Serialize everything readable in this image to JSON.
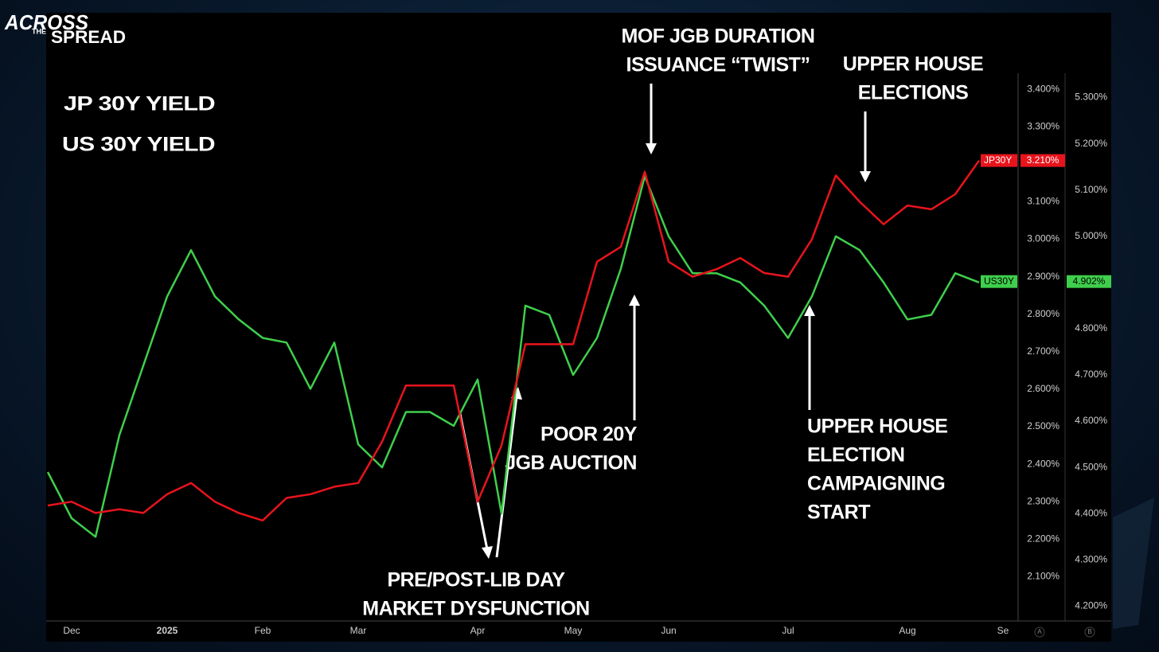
{
  "logo": {
    "top": "ACROSS",
    "middle": "THE",
    "bottom": "SPREAD"
  },
  "axis_buttons": [
    "A",
    "B"
  ],
  "chart_data": {
    "type": "line",
    "categories": [
      null,
      "Dec",
      null,
      null,
      null,
      "2025",
      null,
      null,
      null,
      "Feb",
      null,
      null,
      null,
      "Mar",
      null,
      null,
      null,
      null,
      "Apr",
      null,
      null,
      null,
      "May",
      null,
      null,
      null,
      "Jun",
      null,
      null,
      null,
      null,
      "Jul",
      null,
      null,
      null,
      null,
      "Aug",
      null,
      null,
      null,
      "Se"
    ],
    "series": [
      {
        "name": "JP 30Y YIELD",
        "tag": "JP30Y",
        "color": "#e8141c",
        "axis": "y",
        "last_value": 3.21,
        "last_label": "3.210%",
        "values": [
          2.29,
          2.3,
          2.27,
          2.28,
          2.27,
          2.32,
          2.35,
          2.3,
          2.27,
          2.25,
          2.31,
          2.32,
          2.34,
          2.35,
          2.46,
          2.61,
          2.61,
          2.61,
          2.3,
          2.45,
          2.72,
          2.72,
          2.72,
          2.94,
          2.98,
          3.18,
          2.94,
          2.9,
          2.92,
          2.95,
          2.91,
          2.9,
          3.0,
          3.17,
          3.1,
          3.04,
          3.09,
          3.08,
          3.12,
          3.21,
          null
        ]
      },
      {
        "name": "US 30Y YIELD",
        "tag": "US30Y",
        "color": "#3fcf4c",
        "axis": "y2",
        "last_value": 4.902,
        "last_label": "4.902%",
        "values": [
          4.49,
          4.39,
          4.35,
          4.57,
          4.72,
          4.87,
          4.97,
          4.87,
          4.82,
          4.78,
          4.77,
          4.67,
          4.77,
          4.55,
          4.5,
          4.62,
          4.62,
          4.59,
          4.69,
          4.4,
          4.85,
          4.83,
          4.7,
          4.78,
          4.93,
          5.13,
          5.0,
          4.92,
          4.92,
          4.9,
          4.85,
          4.78,
          4.87,
          5.0,
          4.97,
          4.9,
          4.82,
          4.83,
          4.92,
          4.9,
          null
        ]
      }
    ],
    "ylim": [
      2.05,
      3.43
    ],
    "yticks": [
      {
        "value": 2.1,
        "label": "2.100%"
      },
      {
        "value": 2.2,
        "label": "2.200%"
      },
      {
        "value": 2.3,
        "label": "2.300%"
      },
      {
        "value": 2.4,
        "label": "2.400%"
      },
      {
        "value": 2.5,
        "label": "2.500%"
      },
      {
        "value": 2.6,
        "label": "2.600%"
      },
      {
        "value": 2.7,
        "label": "2.700%"
      },
      {
        "value": 2.8,
        "label": "2.800%"
      },
      {
        "value": 2.9,
        "label": "2.900%"
      },
      {
        "value": 3.0,
        "label": "3.000%"
      },
      {
        "value": 3.1,
        "label": "3.100%"
      },
      {
        "value": 3.2,
        "label": "3.200%"
      },
      {
        "value": 3.3,
        "label": "3.300%"
      },
      {
        "value": 3.4,
        "label": "3.400%"
      }
    ],
    "y2lim": [
      4.18,
      5.325
    ],
    "y2ticks": [
      {
        "value": 4.2,
        "label": "4.200%"
      },
      {
        "value": 4.3,
        "label": "4.300%"
      },
      {
        "value": 4.4,
        "label": "4.400%"
      },
      {
        "value": 4.5,
        "label": "4.500%"
      },
      {
        "value": 4.6,
        "label": "4.600%"
      },
      {
        "value": 4.7,
        "label": "4.700%"
      },
      {
        "value": 4.8,
        "label": "4.800%"
      },
      {
        "value": 4.9,
        "label": "4.900%"
      },
      {
        "value": 5.0,
        "label": "5.000%"
      },
      {
        "value": 5.1,
        "label": "5.100%"
      },
      {
        "value": 5.2,
        "label": "5.200%"
      },
      {
        "value": 5.3,
        "label": "5.300%"
      }
    ],
    "grid": false,
    "annotations": [
      {
        "lines": [
          "MOF JGB DURATION",
          "ISSUANCE  “TWIST”"
        ]
      },
      {
        "lines": [
          "UPPER HOUSE",
          "ELECTIONS"
        ]
      },
      {
        "lines": [
          "POOR 20Y",
          "JGB AUCTION"
        ]
      },
      {
        "lines": [
          "UPPER HOUSE",
          "ELECTION",
          "CAMPAIGNING",
          "START"
        ]
      },
      {
        "lines": [
          "PRE/POST-LIB DAY",
          "MARKET DYSFUNCTION"
        ]
      }
    ]
  }
}
